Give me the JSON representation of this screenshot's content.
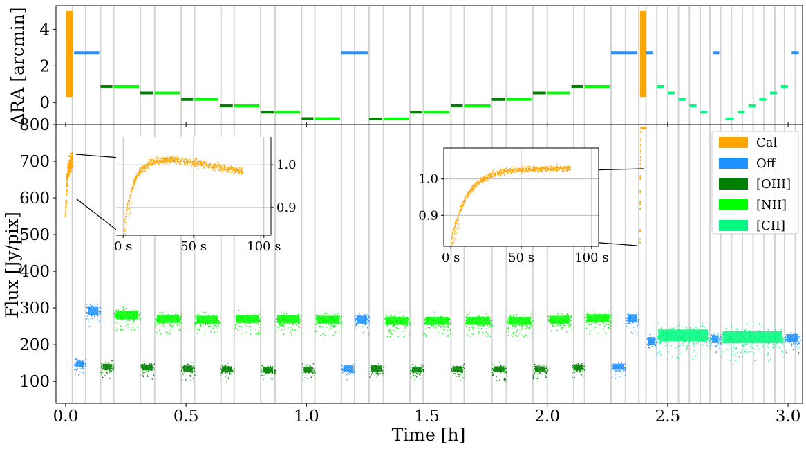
{
  "colors": {
    "cal": "#ffa500",
    "off": "#1e90ff",
    "oiii": "#008000",
    "nii": "#00ff00",
    "cii": "#00fa7f",
    "vline": "#d3d3d3",
    "grid": "#b0b0b0"
  },
  "chart_data": [
    {
      "type": "scatter",
      "panel": "top",
      "ylabel": "ΔRA [arcmin]",
      "ylim": [
        -1.2,
        5.3
      ],
      "xlim": [
        -0.04,
        3.06
      ],
      "yticks": [
        0,
        2,
        4
      ],
      "segments": [
        {
          "name": "Cal",
          "x0": 0.0,
          "x1": 0.03,
          "ymin": 0.3,
          "ymax": 5.0
        },
        {
          "name": "Off",
          "x0": 0.035,
          "x1": 0.145,
          "y": 2.72
        },
        {
          "name": "[OIII]",
          "x0": 0.145,
          "x1": 0.2,
          "y": 0.88
        },
        {
          "name": "[NII]",
          "x0": 0.2,
          "x1": 0.31,
          "y": 0.88
        },
        {
          "name": "[OIII]",
          "x0": 0.31,
          "x1": 0.37,
          "y": 0.52
        },
        {
          "name": "[NII]",
          "x0": 0.37,
          "x1": 0.48,
          "y": 0.52
        },
        {
          "name": "[OIII]",
          "x0": 0.48,
          "x1": 0.535,
          "y": 0.17
        },
        {
          "name": "[NII]",
          "x0": 0.535,
          "x1": 0.64,
          "y": 0.17
        },
        {
          "name": "[OIII]",
          "x0": 0.64,
          "x1": 0.7,
          "y": -0.18
        },
        {
          "name": "[NII]",
          "x0": 0.7,
          "x1": 0.81,
          "y": -0.18
        },
        {
          "name": "[OIII]",
          "x0": 0.81,
          "x1": 0.87,
          "y": -0.53
        },
        {
          "name": "[NII]",
          "x0": 0.87,
          "x1": 0.98,
          "y": -0.53
        },
        {
          "name": "[OIII]",
          "x0": 0.98,
          "x1": 1.035,
          "y": -0.88
        },
        {
          "name": "[NII]",
          "x0": 1.035,
          "x1": 1.145,
          "y": -0.88
        },
        {
          "name": "Off",
          "x0": 1.145,
          "x1": 1.26,
          "y": 2.72
        },
        {
          "name": "[OIII]",
          "x0": 1.26,
          "x1": 1.32,
          "y": -0.9
        },
        {
          "name": "[NII]",
          "x0": 1.32,
          "x1": 1.43,
          "y": -0.9
        },
        {
          "name": "[OIII]",
          "x0": 1.43,
          "x1": 1.485,
          "y": -0.53
        },
        {
          "name": "[NII]",
          "x0": 1.485,
          "x1": 1.6,
          "y": -0.53
        },
        {
          "name": "[OIII]",
          "x0": 1.6,
          "x1": 1.655,
          "y": -0.18
        },
        {
          "name": "[NII]",
          "x0": 1.655,
          "x1": 1.77,
          "y": -0.18
        },
        {
          "name": "[OIII]",
          "x0": 1.77,
          "x1": 1.83,
          "y": 0.17
        },
        {
          "name": "[NII]",
          "x0": 1.83,
          "x1": 1.94,
          "y": 0.17
        },
        {
          "name": "[OIII]",
          "x0": 1.94,
          "x1": 2.0,
          "y": 0.52
        },
        {
          "name": "[NII]",
          "x0": 2.0,
          "x1": 2.1,
          "y": 0.52
        },
        {
          "name": "[OIII]",
          "x0": 2.1,
          "x1": 2.155,
          "y": 0.88
        },
        {
          "name": "[NII]",
          "x0": 2.155,
          "x1": 2.265,
          "y": 0.88
        },
        {
          "name": "Off",
          "x0": 2.265,
          "x1": 2.38,
          "y": 2.72
        },
        {
          "name": "Cal",
          "x0": 2.385,
          "x1": 2.41,
          "ymin": 0.3,
          "ymax": 5.0
        },
        {
          "name": "Off",
          "x0": 2.41,
          "x1": 2.445,
          "y": 2.72
        },
        {
          "name": "[CII]",
          "x0": 2.455,
          "x1": 2.49,
          "y": 0.88
        },
        {
          "name": "[CII]",
          "x0": 2.5,
          "x1": 2.535,
          "y": 0.52
        },
        {
          "name": "[CII]",
          "x0": 2.545,
          "x1": 2.58,
          "y": 0.17
        },
        {
          "name": "[CII]",
          "x0": 2.59,
          "x1": 2.625,
          "y": -0.18
        },
        {
          "name": "[CII]",
          "x0": 2.635,
          "x1": 2.67,
          "y": -0.53
        },
        {
          "name": "Off",
          "x0": 2.69,
          "x1": 2.72,
          "y": 2.72
        },
        {
          "name": "[CII]",
          "x0": 2.74,
          "x1": 2.78,
          "y": -0.9
        },
        {
          "name": "[CII]",
          "x0": 2.79,
          "x1": 2.825,
          "y": -0.53
        },
        {
          "name": "[CII]",
          "x0": 2.835,
          "x1": 2.87,
          "y": -0.18
        },
        {
          "name": "[CII]",
          "x0": 2.88,
          "x1": 2.915,
          "y": 0.17
        },
        {
          "name": "[CII]",
          "x0": 2.925,
          "x1": 2.96,
          "y": 0.52
        },
        {
          "name": "[CII]",
          "x0": 2.97,
          "x1": 3.005,
          "y": 0.88
        },
        {
          "name": "Off",
          "x0": 3.015,
          "x1": 3.05,
          "y": 2.72
        }
      ]
    },
    {
      "type": "scatter",
      "panel": "bottom",
      "xlabel": "Time [h]",
      "ylabel": "Flux [Jy/pix]",
      "xlim": [
        -0.04,
        3.06
      ],
      "ylim": [
        40,
        800
      ],
      "xticks": [
        0.0,
        0.5,
        1.0,
        1.5,
        2.0,
        2.5,
        3.0
      ],
      "xticklabels": [
        "0.0",
        "0.5",
        "1.0",
        "1.5",
        "2.0",
        "2.5",
        "3.0"
      ],
      "yticks": [
        100,
        200,
        300,
        400,
        500,
        600,
        700,
        800
      ],
      "legend": {
        "position": "top-right",
        "entries": [
          "Cal",
          "Off",
          "[OIII]",
          "[NII]",
          "[CII]"
        ]
      },
      "segments": [
        {
          "name": "Cal",
          "x0": 0.0,
          "x1": 0.03,
          "start": 540,
          "level": 700
        },
        {
          "name": "Off",
          "x0": 0.035,
          "x1": 0.085,
          "level": 148
        },
        {
          "name": "Off",
          "x0": 0.085,
          "x1": 0.145,
          "level": 292
        },
        {
          "name": "[OIII]",
          "x0": 0.145,
          "x1": 0.2,
          "level": 140
        },
        {
          "name": "[NII]",
          "x0": 0.2,
          "x1": 0.31,
          "level": 280
        },
        {
          "name": "[OIII]",
          "x0": 0.31,
          "x1": 0.37,
          "level": 138
        },
        {
          "name": "[NII]",
          "x0": 0.37,
          "x1": 0.48,
          "level": 270
        },
        {
          "name": "[OIII]",
          "x0": 0.48,
          "x1": 0.535,
          "level": 135
        },
        {
          "name": "[NII]",
          "x0": 0.535,
          "x1": 0.64,
          "level": 268
        },
        {
          "name": "[OIII]",
          "x0": 0.64,
          "x1": 0.7,
          "level": 133
        },
        {
          "name": "[NII]",
          "x0": 0.7,
          "x1": 0.81,
          "level": 270
        },
        {
          "name": "[OIII]",
          "x0": 0.81,
          "x1": 0.87,
          "level": 132
        },
        {
          "name": "[NII]",
          "x0": 0.87,
          "x1": 0.98,
          "level": 270
        },
        {
          "name": "[OIII]",
          "x0": 0.98,
          "x1": 1.035,
          "level": 132
        },
        {
          "name": "[NII]",
          "x0": 1.035,
          "x1": 1.145,
          "level": 268
        },
        {
          "name": "Off",
          "x0": 1.145,
          "x1": 1.2,
          "level": 135
        },
        {
          "name": "Off",
          "x0": 1.2,
          "x1": 1.26,
          "level": 268
        },
        {
          "name": "[OIII]",
          "x0": 1.26,
          "x1": 1.32,
          "level": 135
        },
        {
          "name": "[NII]",
          "x0": 1.32,
          "x1": 1.43,
          "level": 265
        },
        {
          "name": "[OIII]",
          "x0": 1.43,
          "x1": 1.485,
          "level": 132
        },
        {
          "name": "[NII]",
          "x0": 1.485,
          "x1": 1.6,
          "level": 265
        },
        {
          "name": "[OIII]",
          "x0": 1.6,
          "x1": 1.655,
          "level": 133
        },
        {
          "name": "[NII]",
          "x0": 1.655,
          "x1": 1.77,
          "level": 265
        },
        {
          "name": "[OIII]",
          "x0": 1.77,
          "x1": 1.83,
          "level": 133
        },
        {
          "name": "[NII]",
          "x0": 1.83,
          "x1": 1.94,
          "level": 265
        },
        {
          "name": "[OIII]",
          "x0": 1.94,
          "x1": 2.0,
          "level": 133
        },
        {
          "name": "[NII]",
          "x0": 2.0,
          "x1": 2.1,
          "level": 268
        },
        {
          "name": "[OIII]",
          "x0": 2.1,
          "x1": 2.155,
          "level": 138
        },
        {
          "name": "[NII]",
          "x0": 2.155,
          "x1": 2.265,
          "level": 272
        },
        {
          "name": "Off",
          "x0": 2.265,
          "x1": 2.325,
          "level": 140
        },
        {
          "name": "Off",
          "x0": 2.325,
          "x1": 2.38,
          "level": 272
        },
        {
          "name": "Cal",
          "x0": 2.385,
          "x1": 2.41,
          "start": 470,
          "level": 1000
        },
        {
          "name": "Off",
          "x0": 2.41,
          "x1": 2.455,
          "level": 210
        },
        {
          "name": "[CII]",
          "x0": 2.455,
          "x1": 2.675,
          "level": 225
        },
        {
          "name": "Off",
          "x0": 2.675,
          "x1": 2.72,
          "level": 215
        },
        {
          "name": "[CII]",
          "x0": 2.72,
          "x1": 2.985,
          "level": 220
        },
        {
          "name": "Off",
          "x0": 2.985,
          "x1": 3.05,
          "level": 218
        }
      ],
      "vlines": [
        0.028,
        0.083,
        0.145,
        0.2,
        0.31,
        0.37,
        0.48,
        0.535,
        0.645,
        0.7,
        0.81,
        0.87,
        0.98,
        1.035,
        1.145,
        1.2,
        1.26,
        1.32,
        1.43,
        1.485,
        1.6,
        1.655,
        1.77,
        1.83,
        1.94,
        2.0,
        2.11,
        2.155,
        2.265,
        2.325,
        2.38,
        2.41,
        2.455,
        2.5,
        2.545,
        2.59,
        2.635,
        2.675,
        2.72,
        2.765,
        2.81,
        2.855,
        2.9,
        2.945,
        2.985,
        3.03
      ]
    },
    {
      "type": "scatter",
      "panel": "inset-left",
      "series": [
        {
          "name": "Cal",
          "model": "rise_then_decline"
        }
      ],
      "xlim": [
        -5,
        105
      ],
      "ylim": [
        0.835,
        1.065
      ],
      "xticks": [
        0,
        50,
        100
      ],
      "xticklabels": [
        "0 s",
        "50 s",
        "100 s"
      ],
      "yticks": [
        0.9,
        1.0
      ],
      "yticklabels": [
        "0.9",
        "1.0"
      ],
      "yaxis": "right"
    },
    {
      "type": "scatter",
      "panel": "inset-right",
      "series": [
        {
          "name": "Cal",
          "model": "rise_to_plateau"
        }
      ],
      "xlim": [
        -5,
        105
      ],
      "ylim": [
        0.815,
        1.085
      ],
      "xticks": [
        0,
        50,
        100
      ],
      "xticklabels": [
        "0 s",
        "50 s",
        "100 s"
      ],
      "yticks": [
        0.9,
        1.0
      ],
      "yticklabels": [
        "0.9",
        "1.0"
      ],
      "yaxis": "left"
    }
  ]
}
